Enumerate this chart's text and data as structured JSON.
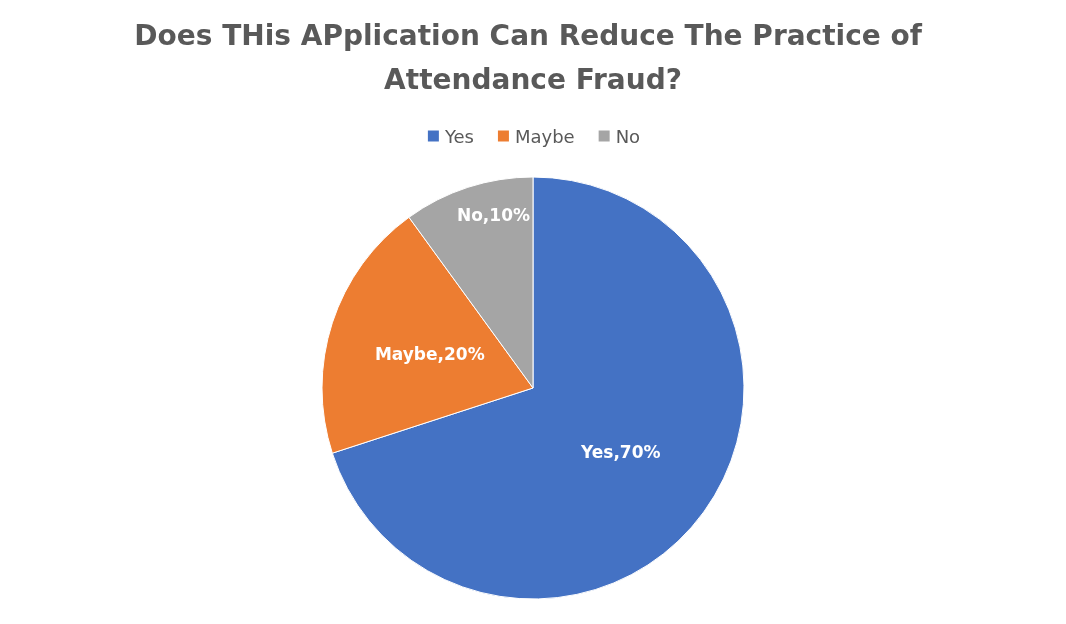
{
  "chart_data": {
    "type": "pie",
    "title": "Does THis APplication Can Reduce The Practice of Attendance Fraud?",
    "categories": [
      "Yes",
      "Maybe",
      "No"
    ],
    "values": [
      70,
      20,
      10
    ],
    "colors": [
      "#4472c4",
      "#ed7d31",
      "#a5a5a5"
    ],
    "value_labels": [
      "Yes,70%",
      "Maybe,20%",
      "No,10%"
    ],
    "legend": "top"
  }
}
